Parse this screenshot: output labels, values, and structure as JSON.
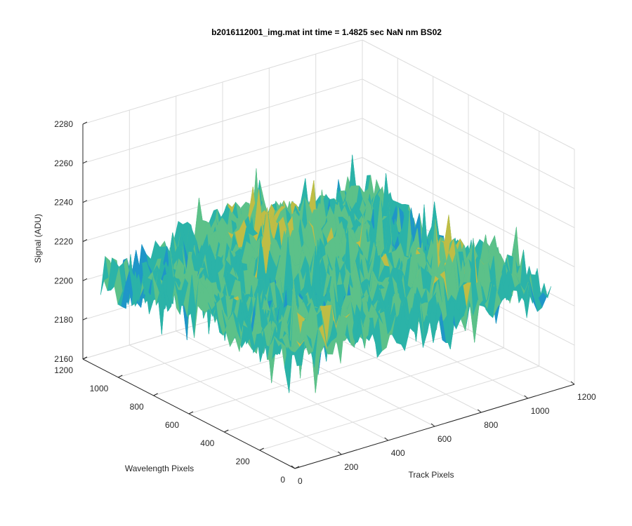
{
  "chart_data": {
    "type": "surface",
    "title": "b2016112001_img.mat int time = 1.4825 sec  NaN nm BS02",
    "xlabel": "Track Pixels",
    "ylabel": "Wavelength Pixels",
    "zlabel": "Signal (ADU)",
    "xlim": [
      0,
      1200
    ],
    "ylim": [
      0,
      1200
    ],
    "zlim": [
      2160,
      2280
    ],
    "xticks": [
      "0",
      "200",
      "400",
      "600",
      "800",
      "1000",
      "1200"
    ],
    "yticks": [
      "0",
      "200",
      "400",
      "600",
      "800",
      "1000",
      "1200"
    ],
    "zticks": [
      "2160",
      "2180",
      "2200",
      "2220",
      "2240",
      "2260",
      "2280"
    ],
    "surface_extent": {
      "x": [
        0,
        1100
      ],
      "y": [
        0,
        1100
      ]
    },
    "signal_mean": 2212,
    "signal_range": [
      2170,
      2262
    ],
    "grid": true,
    "colormap": [
      "#0072bd",
      "#1f96c8",
      "#2bb3a8",
      "#5cc189",
      "#bfbd45",
      "#e0c741"
    ]
  }
}
